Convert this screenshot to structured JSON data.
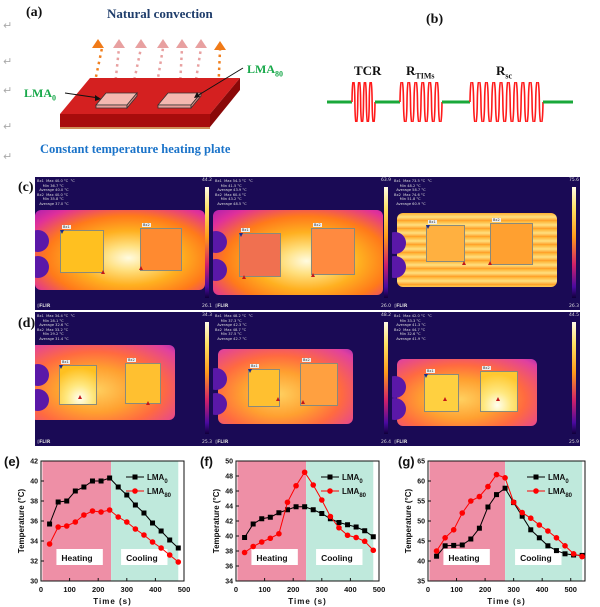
{
  "panel_a": {
    "label": "(a)",
    "title": "Natural convection",
    "lma_left": "LMA",
    "lma_left_sub": "0",
    "lma_right": "LMA",
    "lma_right_sub": "80",
    "caption": "Constant temperature heating plate"
  },
  "panel_b": {
    "label": "(b)",
    "resistors": [
      {
        "name": "TCR",
        "sub": ""
      },
      {
        "name": "R",
        "sub": "TIMs"
      },
      {
        "name": "R",
        "sub": "sc"
      }
    ],
    "wire_color": "#1aa83a",
    "coil_color": "#ff1a1a"
  },
  "panel_c": {
    "label": "(c)",
    "images": [
      {
        "scale_max": "44.2",
        "scale_min": "26.1",
        "brand": "FLIR",
        "readout": "Bx1  Max 40.0 °C  °C\n     Min 36.7 °C\n  Average 40.0 °C\nBx2  Max 40.0 °C\n     Min 35.8 °C\n  Average 37.0 °C",
        "roi1": "Bx1",
        "roi2": "Bx2"
      },
      {
        "scale_max": "63.9",
        "scale_min": "26.0",
        "brand": "FLIR",
        "readout": "Bx1  Max 54.3 °C  °C\n     Min 41.5 °C\n  Average 43.9 °C\nBx2  Max 60.4 °C\n     Min 43.2 °C\n  Average 48.5 °C",
        "roi1": "Bx1",
        "roi2": "Bx2"
      },
      {
        "scale_max": "75.6",
        "scale_min": "26.3",
        "brand": "FLIR",
        "readout": "Bx1  Max 73.5 °C  °C\n     Min 48.2 °C\n  Average 58.7 °C\nBx2  Max 74.6 °C\n     Min 51.8 °C\n  Average 60.9 °C",
        "roi1": "Bx1",
        "roi2": "Bx2"
      }
    ]
  },
  "panel_d": {
    "label": "(d)",
    "images": [
      {
        "scale_max": "34.3",
        "scale_min": "25.3",
        "brand": "FLIR",
        "readout": "Bx1  Max 34.4 °C  °C\n     Min 28.1 °C\n  Average 32.6 °C\nBx2  Max 33.2 °C\n     Min 29.2 °C\n  Average 31.4 °C",
        "roi1": "Bx1",
        "roi2": "Bx2"
      },
      {
        "scale_max": "48.2",
        "scale_min": "26.4",
        "brand": "FLIR",
        "readout": "Bx1  Max 48.2 °C  °C\n     Min 37.3 °C\n  Average 42.3 °C\nBx2  Max 48.7 °C\n     Min 37.5 °C\n  Average 42.7 °C",
        "roi1": "Bx1",
        "roi2": "Bx2"
      },
      {
        "scale_max": "44.5",
        "scale_min": "25.9",
        "brand": "FLIR",
        "readout": "Bx1  Max 42.0 °C  °C\n     Min 33.3 °C\n  Average 41.3 °C\nBx2  Max 44.7 °C\n     Min 32.6 °C\n  Average 41.9 °C",
        "roi1": "Bx1",
        "roi2": "Bx2"
      }
    ]
  },
  "chart_data": [
    {
      "type": "line",
      "panel_label": "(e)",
      "title": "",
      "xlabel": "Time (s)",
      "ylabel": "Temperature (°C)",
      "xlim": [
        0,
        500
      ],
      "ylim": [
        30,
        42
      ],
      "xticks": [
        0,
        100,
        200,
        300,
        400,
        500
      ],
      "yticks": [
        30,
        32,
        34,
        36,
        38,
        40,
        42
      ],
      "regions": [
        {
          "label": "Heating",
          "x": [
            5,
            245
          ],
          "color": "#ee8fa6"
        },
        {
          "label": "Cooling",
          "x": [
            245,
            480
          ],
          "color": "#bfe9dc"
        }
      ],
      "legend": "top-right",
      "x": [
        30,
        60,
        90,
        120,
        150,
        180,
        210,
        240,
        270,
        300,
        330,
        360,
        390,
        420,
        450,
        480
      ],
      "series": [
        {
          "name": "LMA0",
          "label": "LMA",
          "sub": "0",
          "color": "#000000",
          "marker": "square",
          "values": [
            35.7,
            37.9,
            38.0,
            39.0,
            39.4,
            40.0,
            40.0,
            40.3,
            39.4,
            38.6,
            37.6,
            36.8,
            35.8,
            35.0,
            34.1,
            33.3
          ]
        },
        {
          "name": "LMA80",
          "label": "LMA",
          "sub": "80",
          "color": "#ff0000",
          "marker": "diamond",
          "values": [
            33.7,
            35.4,
            35.5,
            35.9,
            36.6,
            37.0,
            36.9,
            37.1,
            36.4,
            35.9,
            35.2,
            34.6,
            33.9,
            33.3,
            32.6,
            31.9
          ]
        }
      ]
    },
    {
      "type": "line",
      "panel_label": "(f)",
      "title": "",
      "xlabel": "Time (s)",
      "ylabel": "Temperature (°C)",
      "xlim": [
        0,
        500
      ],
      "ylim": [
        34,
        50
      ],
      "xticks": [
        0,
        100,
        200,
        300,
        400,
        500
      ],
      "yticks": [
        34,
        36,
        38,
        40,
        42,
        44,
        46,
        48,
        50
      ],
      "regions": [
        {
          "label": "Heating",
          "x": [
            5,
            245
          ],
          "color": "#ee8fa6"
        },
        {
          "label": "Cooling",
          "x": [
            245,
            480
          ],
          "color": "#bfe9dc"
        }
      ],
      "legend": "top-right",
      "x": [
        30,
        60,
        90,
        120,
        150,
        180,
        210,
        240,
        270,
        300,
        330,
        360,
        390,
        420,
        450,
        480
      ],
      "series": [
        {
          "name": "LMA0",
          "label": "LMA",
          "sub": "0",
          "color": "#000000",
          "marker": "square",
          "values": [
            39.8,
            41.6,
            42.3,
            42.5,
            43.1,
            43.5,
            43.9,
            43.9,
            43.5,
            43.0,
            42.3,
            41.8,
            41.5,
            41.2,
            40.7,
            39.9
          ]
        },
        {
          "name": "LMA80",
          "label": "LMA",
          "sub": "80",
          "color": "#ff0000",
          "marker": "diamond",
          "values": [
            37.8,
            38.6,
            39.2,
            39.7,
            40.3,
            44.5,
            46.7,
            48.5,
            46.8,
            44.8,
            42.6,
            41.1,
            40.1,
            39.8,
            39.3,
            38.1
          ]
        }
      ]
    },
    {
      "type": "line",
      "panel_label": "(g)",
      "title": "",
      "xlabel": "Time (s)",
      "ylabel": "Temperature (°C)",
      "xlim": [
        0,
        550
      ],
      "ylim": [
        35,
        65
      ],
      "xticks": [
        0,
        100,
        200,
        300,
        400,
        500
      ],
      "yticks": [
        35,
        40,
        45,
        50,
        55,
        60,
        65
      ],
      "regions": [
        {
          "label": "Heating",
          "x": [
            5,
            270
          ],
          "color": "#ee8fa6"
        },
        {
          "label": "Cooling",
          "x": [
            270,
            540
          ],
          "color": "#bfe9dc"
        }
      ],
      "legend": "top-right",
      "x": [
        30,
        60,
        90,
        120,
        150,
        180,
        210,
        240,
        270,
        300,
        330,
        360,
        390,
        420,
        450,
        480,
        510,
        540
      ],
      "series": [
        {
          "name": "LMA0",
          "label": "LMA",
          "sub": "0",
          "color": "#000000",
          "marker": "square",
          "values": [
            41.2,
            43.8,
            43.9,
            44.0,
            45.5,
            48.2,
            53.5,
            56.6,
            58.2,
            54.6,
            51.2,
            47.8,
            45.8,
            43.8,
            42.6,
            41.8,
            41.5,
            41.4
          ]
        },
        {
          "name": "LMA80",
          "label": "LMA",
          "sub": "80",
          "color": "#ff0000",
          "marker": "diamond",
          "values": [
            42.5,
            45.8,
            47.8,
            52.0,
            55.0,
            56.1,
            58.6,
            61.6,
            60.8,
            54.7,
            52.1,
            50.7,
            49.0,
            47.5,
            45.8,
            43.8,
            41.8,
            41.1
          ]
        }
      ]
    }
  ]
}
